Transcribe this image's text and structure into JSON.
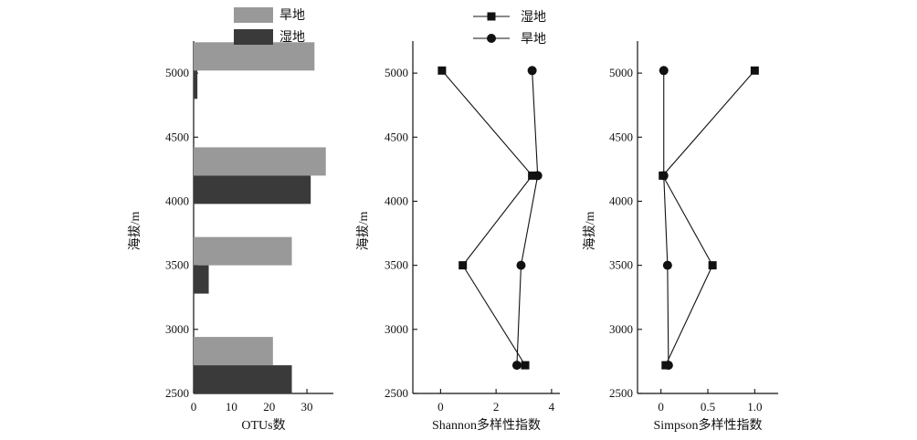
{
  "chart_data": [
    {
      "type": "bar",
      "orientation": "horizontal",
      "xlabel": "OTUs数",
      "ylabel": "海拔/m",
      "xlim": [
        0,
        37
      ],
      "ylim": [
        2500,
        5250
      ],
      "xticks": [
        0,
        10,
        20,
        30
      ],
      "yticks": [
        2500,
        3000,
        3500,
        4000,
        4500,
        5000
      ],
      "categories": [
        2720,
        3500,
        4200,
        5020
      ],
      "legend_position": "top",
      "series": [
        {
          "name": "旱地",
          "color": "#999999",
          "values": [
            21,
            26,
            35,
            32
          ]
        },
        {
          "name": "湿地",
          "color": "#3a3a3a",
          "values": [
            26,
            4,
            31,
            1
          ]
        }
      ]
    },
    {
      "type": "line",
      "xlabel": "Shannon多样性指数",
      "ylabel": "海拔/m",
      "xlim": [
        -1,
        4.3
      ],
      "ylim": [
        2500,
        5250
      ],
      "xticks": [
        0,
        2,
        4
      ],
      "yticks": [
        2500,
        3000,
        3500,
        4000,
        4500,
        5000
      ],
      "legend_position": "top",
      "series": [
        {
          "name": "湿地",
          "marker": "square",
          "x": [
            0.05,
            3.3,
            0.8,
            3.05
          ],
          "y": [
            5020,
            4200,
            3500,
            2720
          ]
        },
        {
          "name": "旱地",
          "marker": "circle",
          "x": [
            3.3,
            3.5,
            2.9,
            2.75
          ],
          "y": [
            5020,
            4200,
            3500,
            2720
          ]
        }
      ]
    },
    {
      "type": "line",
      "xlabel": "Simpson多样性指数",
      "ylabel": "海拔/m",
      "xlim": [
        -0.25,
        1.25
      ],
      "ylim": [
        2500,
        5250
      ],
      "xticks": [
        0,
        0.5,
        1.0
      ],
      "xtick_labels": [
        "0",
        "0.5",
        "1.0"
      ],
      "yticks": [
        2500,
        3000,
        3500,
        4000,
        4500,
        5000
      ],
      "series": [
        {
          "name": "湿地",
          "marker": "square",
          "x": [
            1.0,
            0.02,
            0.55,
            0.05
          ],
          "y": [
            5020,
            4200,
            3500,
            2720
          ]
        },
        {
          "name": "旱地",
          "marker": "circle",
          "x": [
            0.03,
            0.03,
            0.07,
            0.08
          ],
          "y": [
            5020,
            4200,
            3500,
            2720
          ]
        }
      ]
    }
  ]
}
